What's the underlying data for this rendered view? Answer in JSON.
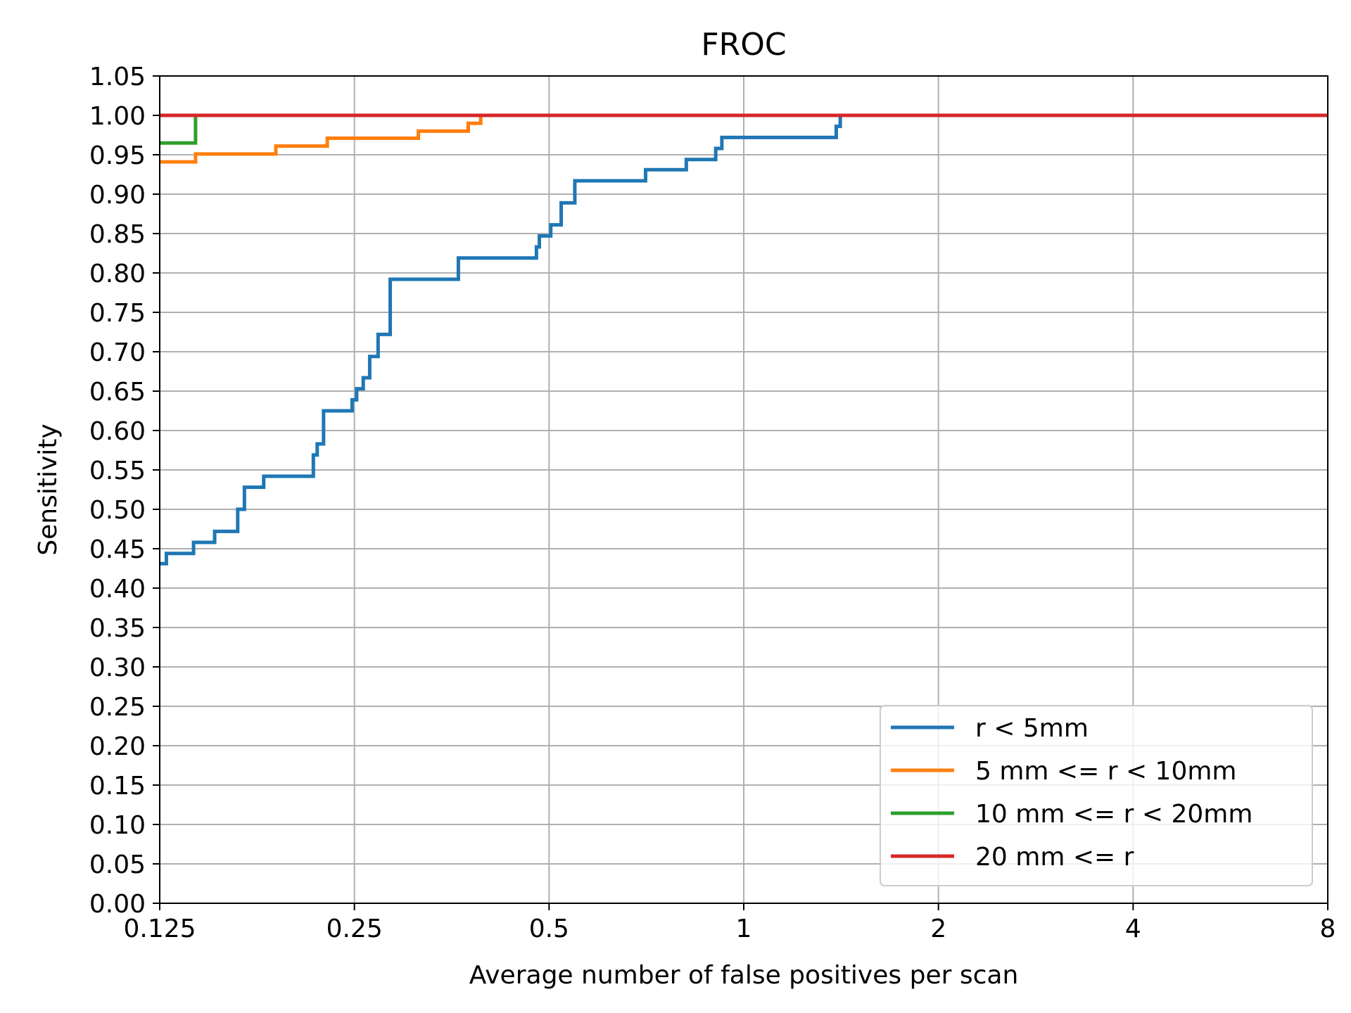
{
  "chart_data": {
    "type": "line",
    "title": "FROC",
    "xlabel": "Average number of false positives per scan",
    "ylabel": "Sensitivity",
    "xscale": "log2",
    "xlim": [
      0.125,
      8
    ],
    "ylim": [
      0.0,
      1.05
    ],
    "x_ticks": [
      0.125,
      0.25,
      0.5,
      1,
      2,
      4,
      8
    ],
    "x_tick_labels": [
      "0.125",
      "0.25",
      "0.5",
      "1",
      "2",
      "4",
      "8"
    ],
    "y_ticks": [
      0.0,
      0.05,
      0.1,
      0.15,
      0.2,
      0.25,
      0.3,
      0.35,
      0.4,
      0.45,
      0.5,
      0.55,
      0.6,
      0.65,
      0.7,
      0.75,
      0.8,
      0.85,
      0.9,
      0.95,
      1.0,
      1.05
    ],
    "y_tick_labels": [
      "0.00",
      "0.05",
      "0.10",
      "0.15",
      "0.20",
      "0.25",
      "0.30",
      "0.35",
      "0.40",
      "0.45",
      "0.50",
      "0.55",
      "0.60",
      "0.65",
      "0.70",
      "0.75",
      "0.80",
      "0.85",
      "0.90",
      "0.95",
      "1.00",
      "1.05"
    ],
    "grid": true,
    "legend_position": "lower-right",
    "step": "post",
    "series": [
      {
        "name": "r < 5mm",
        "color": "#1f77b4",
        "x": [
          0.125,
          0.128,
          0.141,
          0.152,
          0.165,
          0.169,
          0.181,
          0.216,
          0.219,
          0.224,
          0.248,
          0.252,
          0.258,
          0.264,
          0.272,
          0.284,
          0.362,
          0.478,
          0.483,
          0.503,
          0.522,
          0.548,
          0.705,
          0.815,
          0.905,
          0.925,
          1.39,
          1.41
        ],
        "y": [
          0.431,
          0.444,
          0.458,
          0.472,
          0.5,
          0.528,
          0.542,
          0.569,
          0.583,
          0.625,
          0.639,
          0.653,
          0.667,
          0.694,
          0.722,
          0.792,
          0.819,
          0.833,
          0.847,
          0.861,
          0.889,
          0.917,
          0.931,
          0.944,
          0.958,
          0.972,
          0.986,
          1.0
        ]
      },
      {
        "name": "5 mm <= r < 10mm",
        "color": "#ff7f0e",
        "x": [
          0.125,
          0.142,
          0.189,
          0.227,
          0.314,
          0.375,
          0.392
        ],
        "y": [
          0.941,
          0.951,
          0.961,
          0.971,
          0.98,
          0.99,
          1.0
        ]
      },
      {
        "name": "10 mm <= r < 20mm",
        "color": "#2ca02c",
        "x": [
          0.125,
          0.142
        ],
        "y": [
          0.965,
          1.0
        ]
      },
      {
        "name": "20 mm <= r",
        "color": "#d62728",
        "x": [
          0.125,
          8
        ],
        "y": [
          1.0,
          1.0
        ]
      }
    ]
  }
}
